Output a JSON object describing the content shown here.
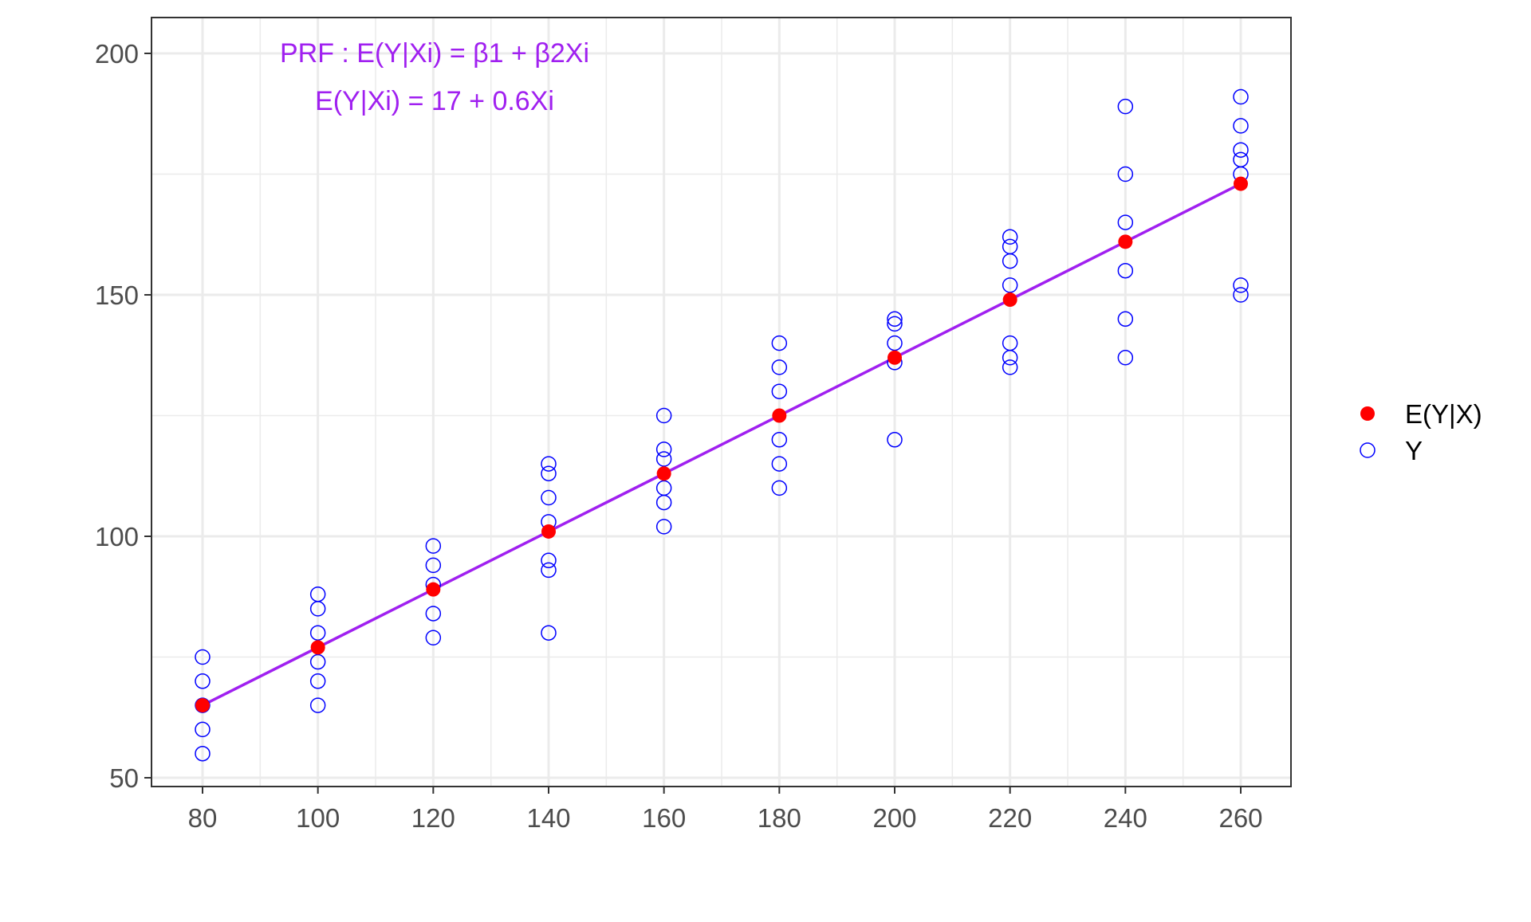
{
  "chart_data": {
    "type": "scatter",
    "title": "",
    "xlabel": "",
    "ylabel": "",
    "xlim": [
      80,
      260
    ],
    "ylim": [
      50,
      200
    ],
    "x_ticks": [
      80,
      100,
      120,
      140,
      160,
      180,
      200,
      220,
      240,
      260
    ],
    "y_ticks": [
      50,
      100,
      150,
      200
    ],
    "grid": true,
    "legend_placement": "right",
    "annotations": [
      "PRF : E(Y|Xi) = β1 + β2Xi",
      "E(Y|Xi) = 17 + 0.6Xi"
    ],
    "series": [
      {
        "name": "Y",
        "marker": "open-circle",
        "color": "#0000ff",
        "points": [
          [
            80,
            55
          ],
          [
            80,
            60
          ],
          [
            80,
            65
          ],
          [
            80,
            70
          ],
          [
            80,
            75
          ],
          [
            100,
            65
          ],
          [
            100,
            70
          ],
          [
            100,
            74
          ],
          [
            100,
            80
          ],
          [
            100,
            85
          ],
          [
            100,
            88
          ],
          [
            120,
            79
          ],
          [
            120,
            84
          ],
          [
            120,
            90
          ],
          [
            120,
            94
          ],
          [
            120,
            98
          ],
          [
            140,
            80
          ],
          [
            140,
            93
          ],
          [
            140,
            95
          ],
          [
            140,
            103
          ],
          [
            140,
            108
          ],
          [
            140,
            113
          ],
          [
            140,
            115
          ],
          [
            160,
            102
          ],
          [
            160,
            107
          ],
          [
            160,
            110
          ],
          [
            160,
            116
          ],
          [
            160,
            118
          ],
          [
            160,
            125
          ],
          [
            180,
            110
          ],
          [
            180,
            115
          ],
          [
            180,
            120
          ],
          [
            180,
            130
          ],
          [
            180,
            135
          ],
          [
            180,
            140
          ],
          [
            200,
            120
          ],
          [
            200,
            136
          ],
          [
            200,
            140
          ],
          [
            200,
            144
          ],
          [
            200,
            145
          ],
          [
            220,
            135
          ],
          [
            220,
            137
          ],
          [
            220,
            140
          ],
          [
            220,
            152
          ],
          [
            220,
            157
          ],
          [
            220,
            160
          ],
          [
            220,
            162
          ],
          [
            240,
            137
          ],
          [
            240,
            145
          ],
          [
            240,
            155
          ],
          [
            240,
            165
          ],
          [
            240,
            175
          ],
          [
            240,
            189
          ],
          [
            260,
            150
          ],
          [
            260,
            152
          ],
          [
            260,
            175
          ],
          [
            260,
            178
          ],
          [
            260,
            180
          ],
          [
            260,
            185
          ],
          [
            260,
            191
          ]
        ]
      },
      {
        "name": "E(Y|X)",
        "marker": "filled-circle",
        "color": "#ff0000",
        "points": [
          [
            80,
            65
          ],
          [
            100,
            77
          ],
          [
            120,
            89
          ],
          [
            140,
            101
          ],
          [
            160,
            113
          ],
          [
            180,
            125
          ],
          [
            200,
            137
          ],
          [
            220,
            149
          ],
          [
            240,
            161
          ],
          [
            260,
            173
          ]
        ]
      }
    ],
    "line": {
      "intercept": 17,
      "slope": 0.6,
      "color": "#a020f0"
    }
  }
}
